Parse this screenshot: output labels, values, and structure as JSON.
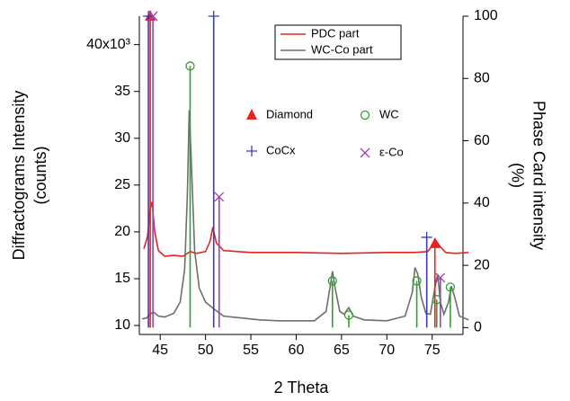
{
  "chart_data": {
    "type": "line",
    "x_label": "2 Theta",
    "y_label": [
      "Diffractograms Intensity",
      "(counts)"
    ],
    "y2_label": [
      "Phase Card intensity",
      "(%)"
    ],
    "xlim": [
      42.7,
      78.4
    ],
    "xticks": [
      45,
      50,
      55,
      60,
      65,
      70,
      75
    ],
    "ylim": [
      9.04,
      43.04
    ],
    "yticks": [
      10,
      15,
      20,
      25,
      30,
      35,
      {
        "value": 40,
        "label": "40x10³"
      }
    ],
    "y2lim": [
      -2.2,
      100
    ],
    "y2ticks": [
      0,
      20,
      40,
      60,
      80,
      100
    ],
    "series": [
      {
        "name": "PDC part",
        "color": "#e8231f",
        "style": "line",
        "x": [
          43.2,
          43.6,
          43.9,
          44.1,
          44.4,
          44.8,
          45.5,
          46.5,
          47.5,
          48.3,
          49.0,
          50.0,
          50.5,
          50.8,
          51.2,
          52.0,
          55,
          60,
          65,
          70,
          73,
          74.5,
          75.0,
          75.4,
          75.9,
          76.5,
          77.5,
          79.0
        ],
        "values": [
          18.2,
          19.5,
          22.5,
          23.2,
          20.0,
          18.0,
          17.4,
          17.5,
          17.4,
          17.9,
          17.7,
          17.9,
          19.0,
          20.5,
          18.8,
          18.0,
          17.8,
          17.8,
          17.7,
          17.8,
          17.8,
          17.9,
          18.5,
          19.1,
          18.4,
          17.8,
          17.7,
          17.8
        ]
      },
      {
        "name": "WC-Co part",
        "color": "#6e6e6e",
        "style": "line",
        "x": [
          43.0,
          43.5,
          44.0,
          44.3,
          44.8,
          45.5,
          46.5,
          47.2,
          47.7,
          48.0,
          48.2,
          48.45,
          48.8,
          49.3,
          50.0,
          51.0,
          52.0,
          54.0,
          56.0,
          58.0,
          60.0,
          62.0,
          63.3,
          63.8,
          64.0,
          64.3,
          64.8,
          65.3,
          65.8,
          66.3,
          67.5,
          70.0,
          72.0,
          72.8,
          73.1,
          73.4,
          73.8,
          74.3,
          74.8,
          75.3,
          75.6,
          75.9,
          76.3,
          76.8,
          77.1,
          77.5,
          78.0,
          79.0
        ],
        "values": [
          10.7,
          10.8,
          11.3,
          11.4,
          11.0,
          10.9,
          11.3,
          12.5,
          16.0,
          24.0,
          33.0,
          27.0,
          18.0,
          14.0,
          12.5,
          11.7,
          11.0,
          10.8,
          10.6,
          10.5,
          10.5,
          10.5,
          11.5,
          14.5,
          15.8,
          14.0,
          11.5,
          11.2,
          11.9,
          11.0,
          10.6,
          10.5,
          11.0,
          13.5,
          16.2,
          15.5,
          13.0,
          11.3,
          11.2,
          14.0,
          15.5,
          12.5,
          11.2,
          12.5,
          14.2,
          13.0,
          11.0,
          10.6
        ]
      },
      {
        "name": "Diamond",
        "color": "#e8231f",
        "style": "stick",
        "marker": "triangle",
        "axis": "y2",
        "x": [
          43.9,
          75.3
        ],
        "values": [
          100,
          27
        ]
      },
      {
        "name": "WC",
        "color": "#2aa52a",
        "style": "stick",
        "marker": "circle",
        "axis": "y2",
        "x": [
          48.3,
          64.0,
          65.8,
          73.3,
          75.5,
          77.0
        ],
        "values": [
          84,
          15,
          4,
          15,
          9,
          13
        ]
      },
      {
        "name": "CoCx",
        "color": "#3a3ab8",
        "style": "stick",
        "marker": "plus",
        "axis": "y2",
        "x": [
          43.7,
          50.9,
          74.4
        ],
        "values": [
          100,
          100,
          29
        ]
      },
      {
        "name": "ε-Co",
        "color": "#a040b0",
        "style": "stick",
        "marker": "cross",
        "axis": "y2",
        "x": [
          44.2,
          51.5,
          75.9
        ],
        "values": [
          100,
          42,
          16
        ]
      }
    ]
  }
}
